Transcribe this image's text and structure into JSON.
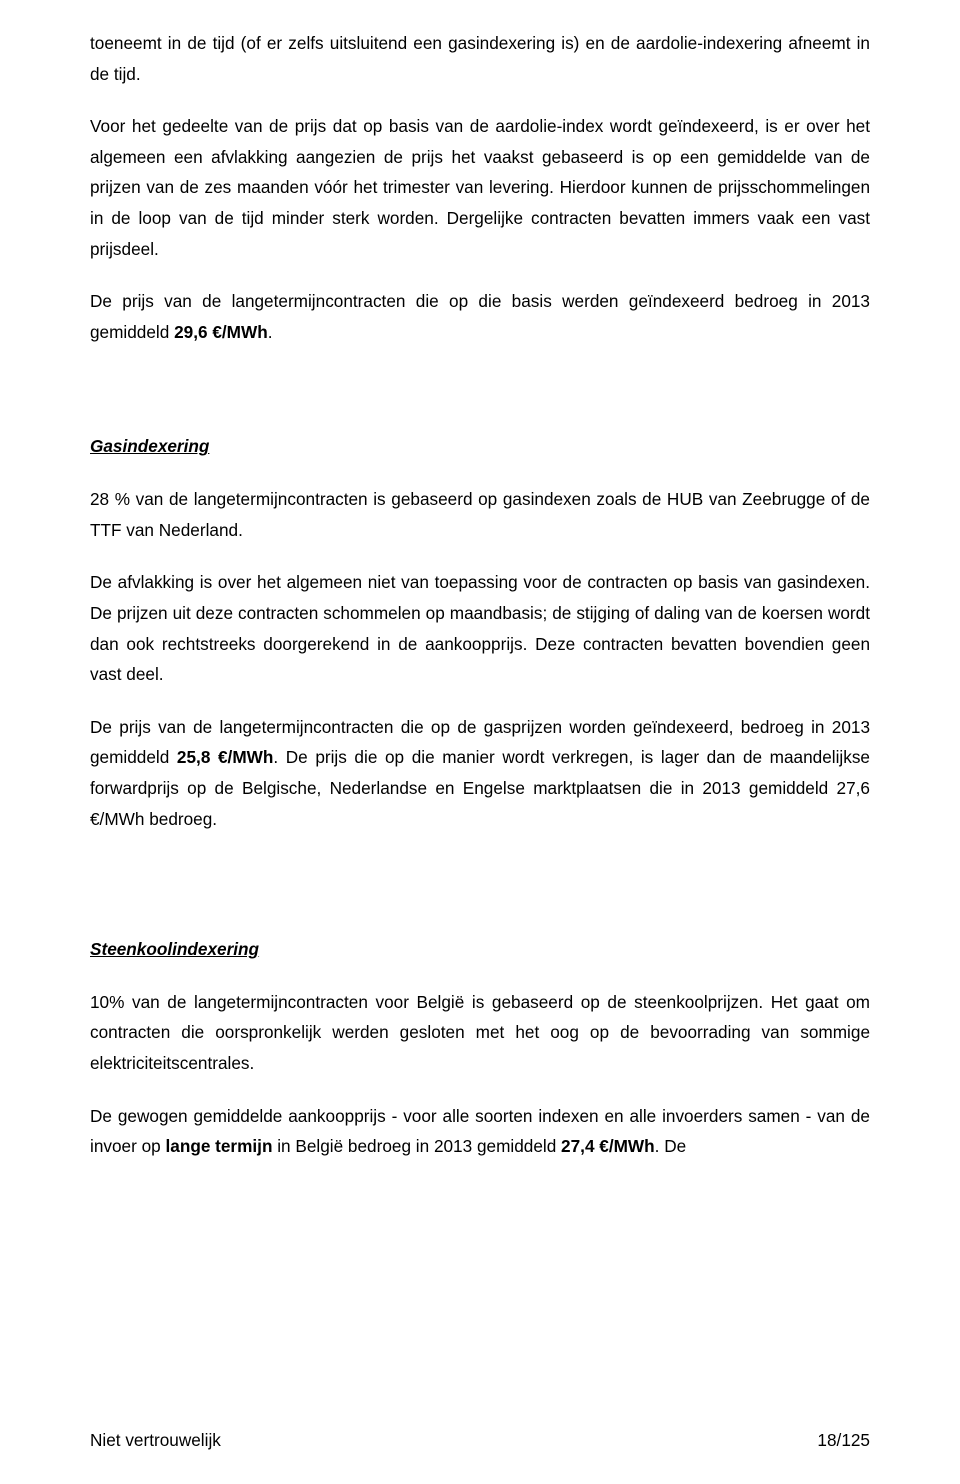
{
  "paragraphs": {
    "p1": "toeneemt in de tijd (of er zelfs uitsluitend een gasindexering is) en de aardolie-indexering afneemt in de tijd.",
    "p2": "Voor het gedeelte van de prijs dat op basis van de aardolie-index wordt geïndexeerd, is er over het algemeen een afvlakking aangezien de prijs het vaakst gebaseerd is op een gemiddelde van de prijzen van de zes maanden vóór het trimester van levering. Hierdoor kunnen de prijsschommelingen in de loop van de tijd minder sterk worden. Dergelijke contracten bevatten immers vaak een vast prijsdeel.",
    "p3a": "De prijs van de langetermijncontracten die op die basis werden geïndexeerd bedroeg in 2013 gemiddeld ",
    "p3b": "29,6 €/MWh",
    "p3c": ".",
    "h1": "Gasindexering",
    "p4": "28 % van de langetermijncontracten is gebaseerd op gasindexen zoals de HUB van Zeebrugge of de TTF van Nederland.",
    "p5": "De afvlakking is over het algemeen niet van toepassing voor de contracten op basis van gasindexen. De prijzen uit deze contracten schommelen op maandbasis; de stijging of daling van de koersen wordt dan ook rechtstreeks doorgerekend in de aankoopprijs. Deze contracten bevatten bovendien geen vast deel.",
    "p6a": "De prijs van de langetermijncontracten die op de gasprijzen worden geïndexeerd, bedroeg in 2013 gemiddeld ",
    "p6b": "25,8 €/MWh",
    "p6c": ". De prijs die op die manier wordt verkregen, is lager dan de maandelijkse forwardprijs op de Belgische, Nederlandse en Engelse marktplaatsen die in 2013 gemiddeld 27,6 €/MWh bedroeg.",
    "h2": "Steenkoolindexering",
    "p7": "10% van de langetermijncontracten voor België is gebaseerd op de steenkoolprijzen. Het gaat om contracten die oorspronkelijk werden gesloten met het oog op de bevoorrading van sommige elektriciteitscentrales.",
    "p8a": "De gewogen gemiddelde aankoopprijs - voor alle soorten indexen en alle invoerders samen - van de invoer op ",
    "p8b": "lange termijn",
    "p8c": " in België bedroeg in 2013 gemiddeld ",
    "p8d": "27,4 €/MWh",
    "p8e": ". De"
  },
  "footer": {
    "left": "Niet vertrouwelijk",
    "right": "18/125"
  }
}
